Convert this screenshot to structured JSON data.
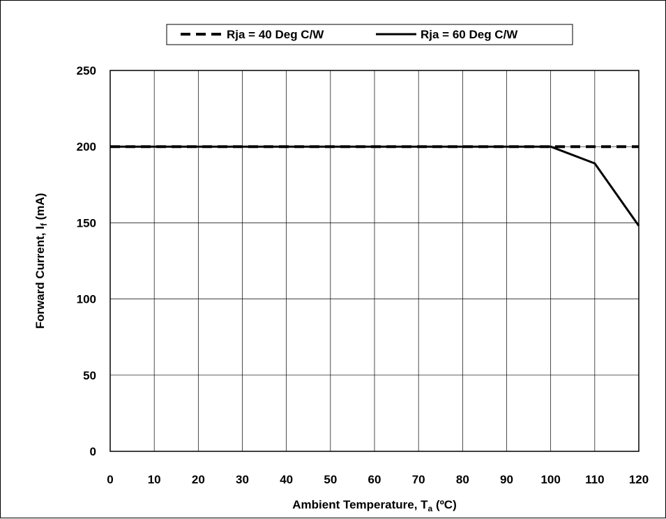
{
  "chart_data": {
    "type": "line",
    "x": [
      0,
      10,
      20,
      30,
      40,
      50,
      60,
      70,
      80,
      90,
      100,
      110,
      120
    ],
    "xlim": [
      0,
      120
    ],
    "ylim": [
      0,
      250
    ],
    "xticks": [
      "0",
      "10",
      "20",
      "30",
      "40",
      "50",
      "60",
      "70",
      "80",
      "90",
      "100",
      "110",
      "120"
    ],
    "yticks": [
      "0",
      "50",
      "100",
      "150",
      "200",
      "250"
    ],
    "xlabel": {
      "main": "Ambient Temperature, T",
      "sub": "a",
      "unit": " (ºC)"
    },
    "ylabel": {
      "main": "Forward Current, I",
      "sub": "f",
      "unit": "  (mA)"
    },
    "grid": true,
    "legend_position": "top",
    "series": [
      {
        "name": "Rja = 40 Deg C/W",
        "style": "dashed",
        "color": "#000000",
        "values": [
          200,
          200,
          200,
          200,
          200,
          200,
          200,
          200,
          200,
          200,
          200,
          200,
          200
        ]
      },
      {
        "name": "Rja = 60 Deg C/W",
        "style": "solid",
        "color": "#000000",
        "values": [
          200,
          200,
          200,
          200,
          200,
          200,
          200,
          200,
          200,
          200,
          200,
          189,
          148
        ]
      }
    ]
  }
}
